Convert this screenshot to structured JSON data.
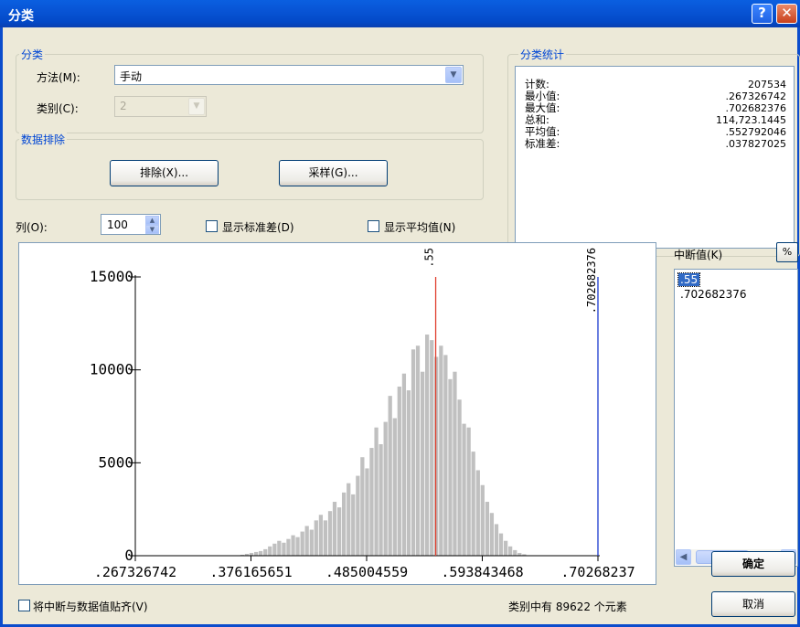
{
  "window": {
    "title": "分类",
    "help_glyph": "?",
    "close_glyph": "✕"
  },
  "classification": {
    "group_label": "分类",
    "method_label": "方法(M):",
    "method_value": "手动",
    "classes_label": "类别(C):",
    "classes_value": "2"
  },
  "exclusion": {
    "group_label": "数据排除",
    "exclude_button": "排除(X)...",
    "sampling_button": "采样(G)..."
  },
  "stats": {
    "group_label": "分类统计",
    "rows": [
      {
        "label": "计数:",
        "value": "207534"
      },
      {
        "label": "最小值:",
        "value": ".267326742"
      },
      {
        "label": "最大值:",
        "value": ".702682376"
      },
      {
        "label": "总和:",
        "value": "114,723.1445"
      },
      {
        "label": "平均值:",
        "value": ".552792046"
      },
      {
        "label": "标准差:",
        "value": ".037827025"
      }
    ]
  },
  "columns": {
    "label": "列(O):",
    "value": "100"
  },
  "show_std_label": "显示标准差(D)",
  "show_mean_label": "显示平均值(N)",
  "breaks": {
    "label": "中断值(K)",
    "percent_button": "%",
    "values": [
      ".55",
      ".702682376"
    ],
    "selected_index": 0
  },
  "snap_label": "将中断与数据值贴齐(V)",
  "element_count_text": "类别中有 89622 个元素",
  "ok_button": "确定",
  "cancel_button": "取消",
  "colors": {
    "bar": "#c0c0c0",
    "break_line_red": "#e04030",
    "break_line_blue": "#1a3ad0",
    "group_label": "#0046d5"
  },
  "chart_data": {
    "type": "bar",
    "title": "",
    "xlabel": "",
    "ylabel": "",
    "x_tick_labels": [
      ".267326742",
      ".376165651",
      ".485004559",
      ".593843468",
      ".70268237"
    ],
    "y_tick_labels": [
      "0",
      "5000",
      "10000",
      "15000"
    ],
    "xlim": [
      0.267326742,
      0.702682376
    ],
    "ylim": [
      0,
      15000
    ],
    "bin_count": 100,
    "bin_values": [
      0,
      0,
      0,
      0,
      0,
      0,
      0,
      0,
      0,
      0,
      0,
      0,
      0,
      0,
      0,
      0,
      0,
      0,
      0,
      0,
      0,
      0,
      0,
      0,
      0,
      0,
      0,
      0,
      0,
      0,
      0,
      0,
      0,
      0,
      0,
      0,
      0,
      0,
      0,
      0,
      0,
      0,
      0,
      0,
      0,
      0,
      0,
      0,
      0,
      0,
      0,
      0,
      0,
      0,
      0,
      0,
      0,
      0,
      0,
      0,
      0,
      0,
      0,
      0,
      0,
      0,
      0,
      0,
      0,
      0,
      0,
      0,
      0,
      0,
      0,
      0,
      0,
      0,
      0,
      0,
      0,
      0,
      0,
      0,
      0,
      0,
      0,
      0,
      0,
      0,
      0,
      0,
      0,
      0,
      0,
      0,
      0,
      0,
      0,
      0
    ],
    "bins": [
      {
        "x": 0.368,
        "y": 50
      },
      {
        "x": 0.3723,
        "y": 100
      },
      {
        "x": 0.3766,
        "y": 150
      },
      {
        "x": 0.381,
        "y": 200
      },
      {
        "x": 0.3853,
        "y": 250
      },
      {
        "x": 0.3897,
        "y": 350
      },
      {
        "x": 0.394,
        "y": 500
      },
      {
        "x": 0.3984,
        "y": 650
      },
      {
        "x": 0.4027,
        "y": 800
      },
      {
        "x": 0.4071,
        "y": 700
      },
      {
        "x": 0.4114,
        "y": 900
      },
      {
        "x": 0.4158,
        "y": 1100
      },
      {
        "x": 0.4201,
        "y": 1000
      },
      {
        "x": 0.4245,
        "y": 1300
      },
      {
        "x": 0.4288,
        "y": 1600
      },
      {
        "x": 0.4332,
        "y": 1400
      },
      {
        "x": 0.4375,
        "y": 1900
      },
      {
        "x": 0.4419,
        "y": 2200
      },
      {
        "x": 0.4462,
        "y": 1900
      },
      {
        "x": 0.4506,
        "y": 2400
      },
      {
        "x": 0.4549,
        "y": 2900
      },
      {
        "x": 0.4593,
        "y": 2600
      },
      {
        "x": 0.4636,
        "y": 3400
      },
      {
        "x": 0.468,
        "y": 3900
      },
      {
        "x": 0.4723,
        "y": 3300
      },
      {
        "x": 0.4767,
        "y": 4300
      },
      {
        "x": 0.481,
        "y": 5300
      },
      {
        "x": 0.4854,
        "y": 4700
      },
      {
        "x": 0.4897,
        "y": 5800
      },
      {
        "x": 0.4941,
        "y": 6900
      },
      {
        "x": 0.4984,
        "y": 6000
      },
      {
        "x": 0.5028,
        "y": 7200
      },
      {
        "x": 0.5071,
        "y": 8600
      },
      {
        "x": 0.5115,
        "y": 7400
      },
      {
        "x": 0.5158,
        "y": 9100
      },
      {
        "x": 0.5202,
        "y": 9800
      },
      {
        "x": 0.5245,
        "y": 8900
      },
      {
        "x": 0.5289,
        "y": 11100
      },
      {
        "x": 0.5332,
        "y": 11300
      },
      {
        "x": 0.5376,
        "y": 9900
      },
      {
        "x": 0.5419,
        "y": 11900
      },
      {
        "x": 0.5463,
        "y": 11600
      },
      {
        "x": 0.5506,
        "y": 10700
      },
      {
        "x": 0.555,
        "y": 11300
      },
      {
        "x": 0.5593,
        "y": 10800
      },
      {
        "x": 0.5637,
        "y": 9500
      },
      {
        "x": 0.568,
        "y": 9900
      },
      {
        "x": 0.5724,
        "y": 8400
      },
      {
        "x": 0.5767,
        "y": 7100
      },
      {
        "x": 0.5811,
        "y": 6900
      },
      {
        "x": 0.5854,
        "y": 5600
      },
      {
        "x": 0.5898,
        "y": 4600
      },
      {
        "x": 0.5941,
        "y": 3800
      },
      {
        "x": 0.5985,
        "y": 2900
      },
      {
        "x": 0.6028,
        "y": 2300
      },
      {
        "x": 0.6072,
        "y": 1700
      },
      {
        "x": 0.6115,
        "y": 1200
      },
      {
        "x": 0.6159,
        "y": 800
      },
      {
        "x": 0.6202,
        "y": 500
      },
      {
        "x": 0.6246,
        "y": 300
      },
      {
        "x": 0.6289,
        "y": 150
      },
      {
        "x": 0.6333,
        "y": 80
      }
    ],
    "break_lines": [
      {
        "value": 0.55,
        "label": ".55",
        "color": "#e04030"
      },
      {
        "value": 0.702682376,
        "label": ".702682376",
        "color": "#1a3ad0"
      }
    ]
  }
}
